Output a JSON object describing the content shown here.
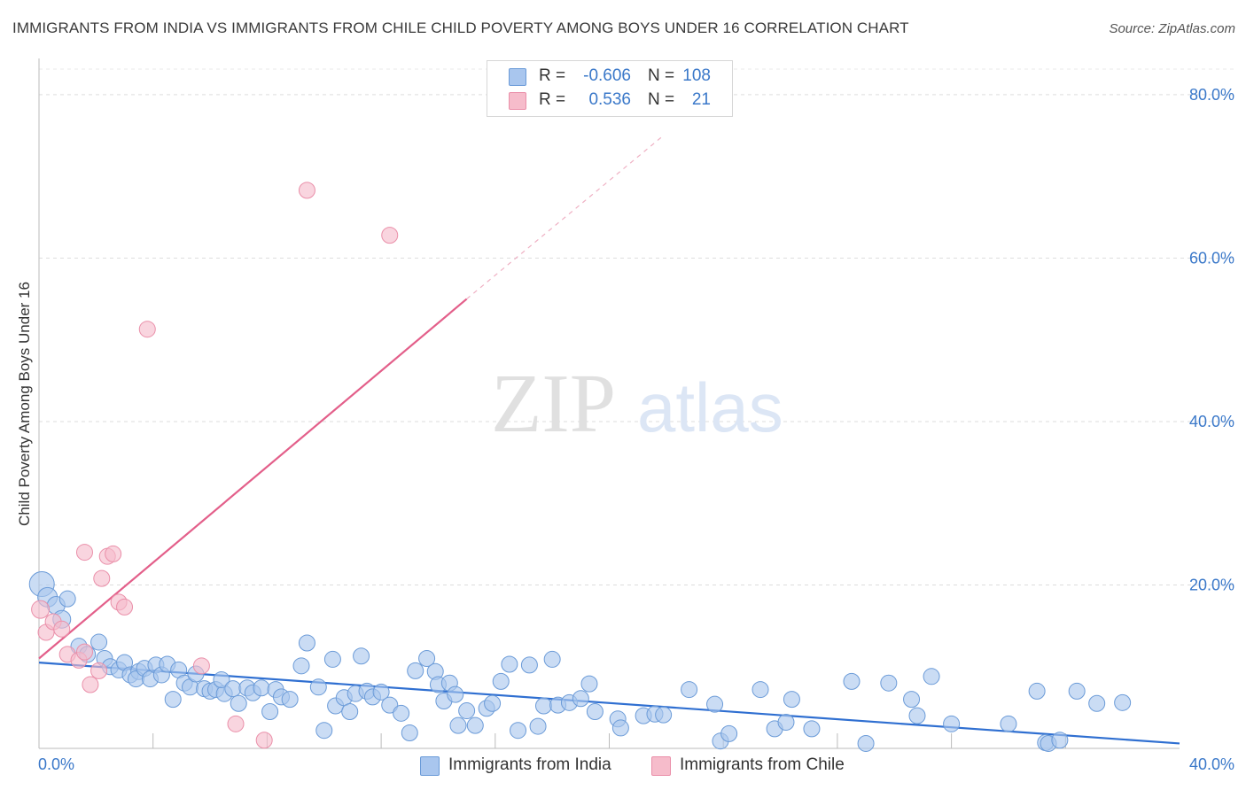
{
  "header": {
    "title": "IMMIGRANTS FROM INDIA VS IMMIGRANTS FROM CHILE CHILD POVERTY AMONG BOYS UNDER 16 CORRELATION CHART",
    "source": "Source: ZipAtlas.com"
  },
  "legend": {
    "india": {
      "r_label": "R =",
      "r_value": "-0.606",
      "n_label": "N =",
      "n_value": "108"
    },
    "chile": {
      "r_label": "R =",
      "r_value": "0.536",
      "n_label": "N =",
      "n_value": "21"
    }
  },
  "watermark": {
    "zip": "ZIP",
    "atlas": "atlas"
  },
  "chart_data": {
    "type": "scatter",
    "title": "IMMIGRANTS FROM INDIA VS IMMIGRANTS FROM CHILE CHILD POVERTY AMONG BOYS UNDER 16 CORRELATION CHART",
    "xlabel": "",
    "ylabel": "Child Poverty Among Boys Under 16",
    "xlim": [
      0,
      40
    ],
    "ylim": [
      0,
      84
    ],
    "x_tick_labels": [
      "0.0%",
      "40.0%"
    ],
    "y_ticks": [
      20,
      40,
      60,
      80
    ],
    "y_tick_labels": [
      "20.0%",
      "40.0%",
      "60.0%",
      "80.0%"
    ],
    "colors": {
      "india_fill": "#a9c6ee",
      "india_stroke": "#6b9bd8",
      "india_line": "#2f6fd1",
      "chile_fill": "#f6bccb",
      "chile_stroke": "#ea8fa9",
      "chile_line": "#e35f8a",
      "grid": "#dddddd",
      "tick_label": "#3a78c9"
    },
    "series": [
      {
        "name": "Immigrants from India",
        "color": "#a9c6ee",
        "trend": {
          "x": [
            0,
            40
          ],
          "y": [
            10.5,
            0.6
          ]
        },
        "points": [
          [
            0.1,
            20.1,
            14
          ],
          [
            0.3,
            18.5,
            11
          ],
          [
            0.6,
            17.5,
            10
          ],
          [
            0.8,
            15.8,
            10
          ],
          [
            1.0,
            18.3,
            9
          ],
          [
            1.4,
            12.5,
            9
          ],
          [
            1.7,
            11.5,
            9
          ],
          [
            2.1,
            13.0,
            9
          ],
          [
            2.3,
            11.0,
            9
          ],
          [
            2.5,
            10.0,
            9
          ],
          [
            2.8,
            9.6,
            9
          ],
          [
            3.0,
            10.5,
            9
          ],
          [
            3.2,
            9.0,
            9
          ],
          [
            3.5,
            9.4,
            9
          ],
          [
            3.4,
            8.5,
            9
          ],
          [
            3.7,
            9.8,
            9
          ],
          [
            3.9,
            8.5,
            9
          ],
          [
            4.1,
            10.2,
            9
          ],
          [
            4.3,
            9.0,
            9
          ],
          [
            4.5,
            10.3,
            9
          ],
          [
            4.7,
            6.0,
            9
          ],
          [
            4.9,
            9.6,
            9
          ],
          [
            5.1,
            8.0,
            9
          ],
          [
            5.3,
            7.5,
            9
          ],
          [
            5.5,
            9.1,
            9
          ],
          [
            5.8,
            7.3,
            9
          ],
          [
            6.0,
            7.0,
            9
          ],
          [
            6.2,
            7.2,
            9
          ],
          [
            6.5,
            6.7,
            9
          ],
          [
            6.4,
            8.4,
            9
          ],
          [
            6.8,
            7.3,
            9
          ],
          [
            7.0,
            5.5,
            9
          ],
          [
            7.3,
            7.4,
            9
          ],
          [
            7.5,
            6.8,
            9
          ],
          [
            7.8,
            7.4,
            9
          ],
          [
            8.1,
            4.5,
            9
          ],
          [
            8.3,
            7.2,
            9
          ],
          [
            8.5,
            6.3,
            9
          ],
          [
            8.8,
            6.0,
            9
          ],
          [
            9.2,
            10.1,
            9
          ],
          [
            9.4,
            12.9,
            9
          ],
          [
            9.8,
            7.5,
            9
          ],
          [
            10.0,
            2.2,
            9
          ],
          [
            10.3,
            10.9,
            9
          ],
          [
            10.4,
            5.2,
            9
          ],
          [
            10.7,
            6.2,
            9
          ],
          [
            10.9,
            4.5,
            9
          ],
          [
            11.1,
            6.7,
            9
          ],
          [
            11.3,
            11.3,
            9
          ],
          [
            11.5,
            7.0,
            9
          ],
          [
            11.7,
            6.3,
            9
          ],
          [
            12.0,
            6.9,
            9
          ],
          [
            12.3,
            5.3,
            9
          ],
          [
            12.7,
            4.3,
            9
          ],
          [
            13.0,
            1.9,
            9
          ],
          [
            13.2,
            9.5,
            9
          ],
          [
            13.6,
            11.0,
            9
          ],
          [
            13.9,
            9.4,
            9
          ],
          [
            14.0,
            7.8,
            9
          ],
          [
            14.2,
            5.8,
            9
          ],
          [
            14.4,
            8.0,
            9
          ],
          [
            14.6,
            6.6,
            9
          ],
          [
            14.7,
            2.8,
            9
          ],
          [
            15.0,
            4.6,
            9
          ],
          [
            15.3,
            2.8,
            9
          ],
          [
            15.7,
            4.9,
            9
          ],
          [
            15.9,
            5.5,
            9
          ],
          [
            16.2,
            8.2,
            9
          ],
          [
            16.5,
            10.3,
            9
          ],
          [
            16.8,
            2.2,
            9
          ],
          [
            17.2,
            10.2,
            9
          ],
          [
            17.5,
            2.7,
            9
          ],
          [
            17.7,
            5.2,
            9
          ],
          [
            18.0,
            10.9,
            9
          ],
          [
            18.2,
            5.3,
            9
          ],
          [
            18.6,
            5.6,
            9
          ],
          [
            19.0,
            6.1,
            9
          ],
          [
            19.3,
            7.9,
            9
          ],
          [
            19.5,
            4.5,
            9
          ],
          [
            20.3,
            3.6,
            9
          ],
          [
            20.4,
            2.5,
            9
          ],
          [
            21.2,
            4.0,
            9
          ],
          [
            21.6,
            4.2,
            9
          ],
          [
            21.9,
            4.1,
            9
          ],
          [
            22.8,
            7.2,
            9
          ],
          [
            23.7,
            5.4,
            9
          ],
          [
            23.9,
            0.9,
            9
          ],
          [
            24.2,
            1.8,
            9
          ],
          [
            25.3,
            7.2,
            9
          ],
          [
            25.8,
            2.4,
            9
          ],
          [
            26.2,
            3.2,
            9
          ],
          [
            26.4,
            6.0,
            9
          ],
          [
            27.1,
            2.4,
            9
          ],
          [
            28.5,
            8.2,
            9
          ],
          [
            29.0,
            0.6,
            9
          ],
          [
            29.8,
            8.0,
            9
          ],
          [
            30.6,
            6.0,
            9
          ],
          [
            30.8,
            4.0,
            9
          ],
          [
            31.3,
            8.8,
            9
          ],
          [
            32.0,
            3.0,
            9
          ],
          [
            34.0,
            3.0,
            9
          ],
          [
            35.0,
            7.0,
            9
          ],
          [
            35.3,
            0.7,
            9
          ],
          [
            35.4,
            0.6,
            9
          ],
          [
            35.8,
            1.0,
            9
          ],
          [
            36.4,
            7.0,
            9
          ],
          [
            37.1,
            5.5,
            9
          ],
          [
            38.0,
            5.6,
            9
          ]
        ]
      },
      {
        "name": "Immigrants from Chile",
        "color": "#f6bccb",
        "trend": {
          "x": [
            0,
            15
          ],
          "y": [
            11.0,
            55.0
          ]
        },
        "trend_dashed": {
          "x": [
            15,
            21.9
          ],
          "y": [
            55.0,
            75.0
          ]
        },
        "points": [
          [
            0.05,
            17.0,
            10
          ],
          [
            0.25,
            14.2,
            9
          ],
          [
            0.5,
            15.5,
            9
          ],
          [
            0.8,
            14.6,
            9
          ],
          [
            1.0,
            11.5,
            9
          ],
          [
            1.4,
            10.8,
            9
          ],
          [
            1.6,
            11.8,
            9
          ],
          [
            1.6,
            24.0,
            9
          ],
          [
            1.8,
            7.8,
            9
          ],
          [
            2.1,
            9.5,
            9
          ],
          [
            2.2,
            20.8,
            9
          ],
          [
            2.4,
            23.5,
            9
          ],
          [
            2.6,
            23.8,
            9
          ],
          [
            2.8,
            17.9,
            9
          ],
          [
            3.0,
            17.3,
            9
          ],
          [
            3.8,
            51.3,
            9
          ],
          [
            5.7,
            10.1,
            9
          ],
          [
            6.9,
            3.0,
            9
          ],
          [
            7.9,
            1.0,
            9
          ],
          [
            9.4,
            68.3,
            9
          ],
          [
            12.3,
            62.8,
            9
          ]
        ]
      }
    ]
  },
  "bottom_legend": {
    "india_label": "Immigrants from India",
    "chile_label": "Immigrants from Chile"
  }
}
